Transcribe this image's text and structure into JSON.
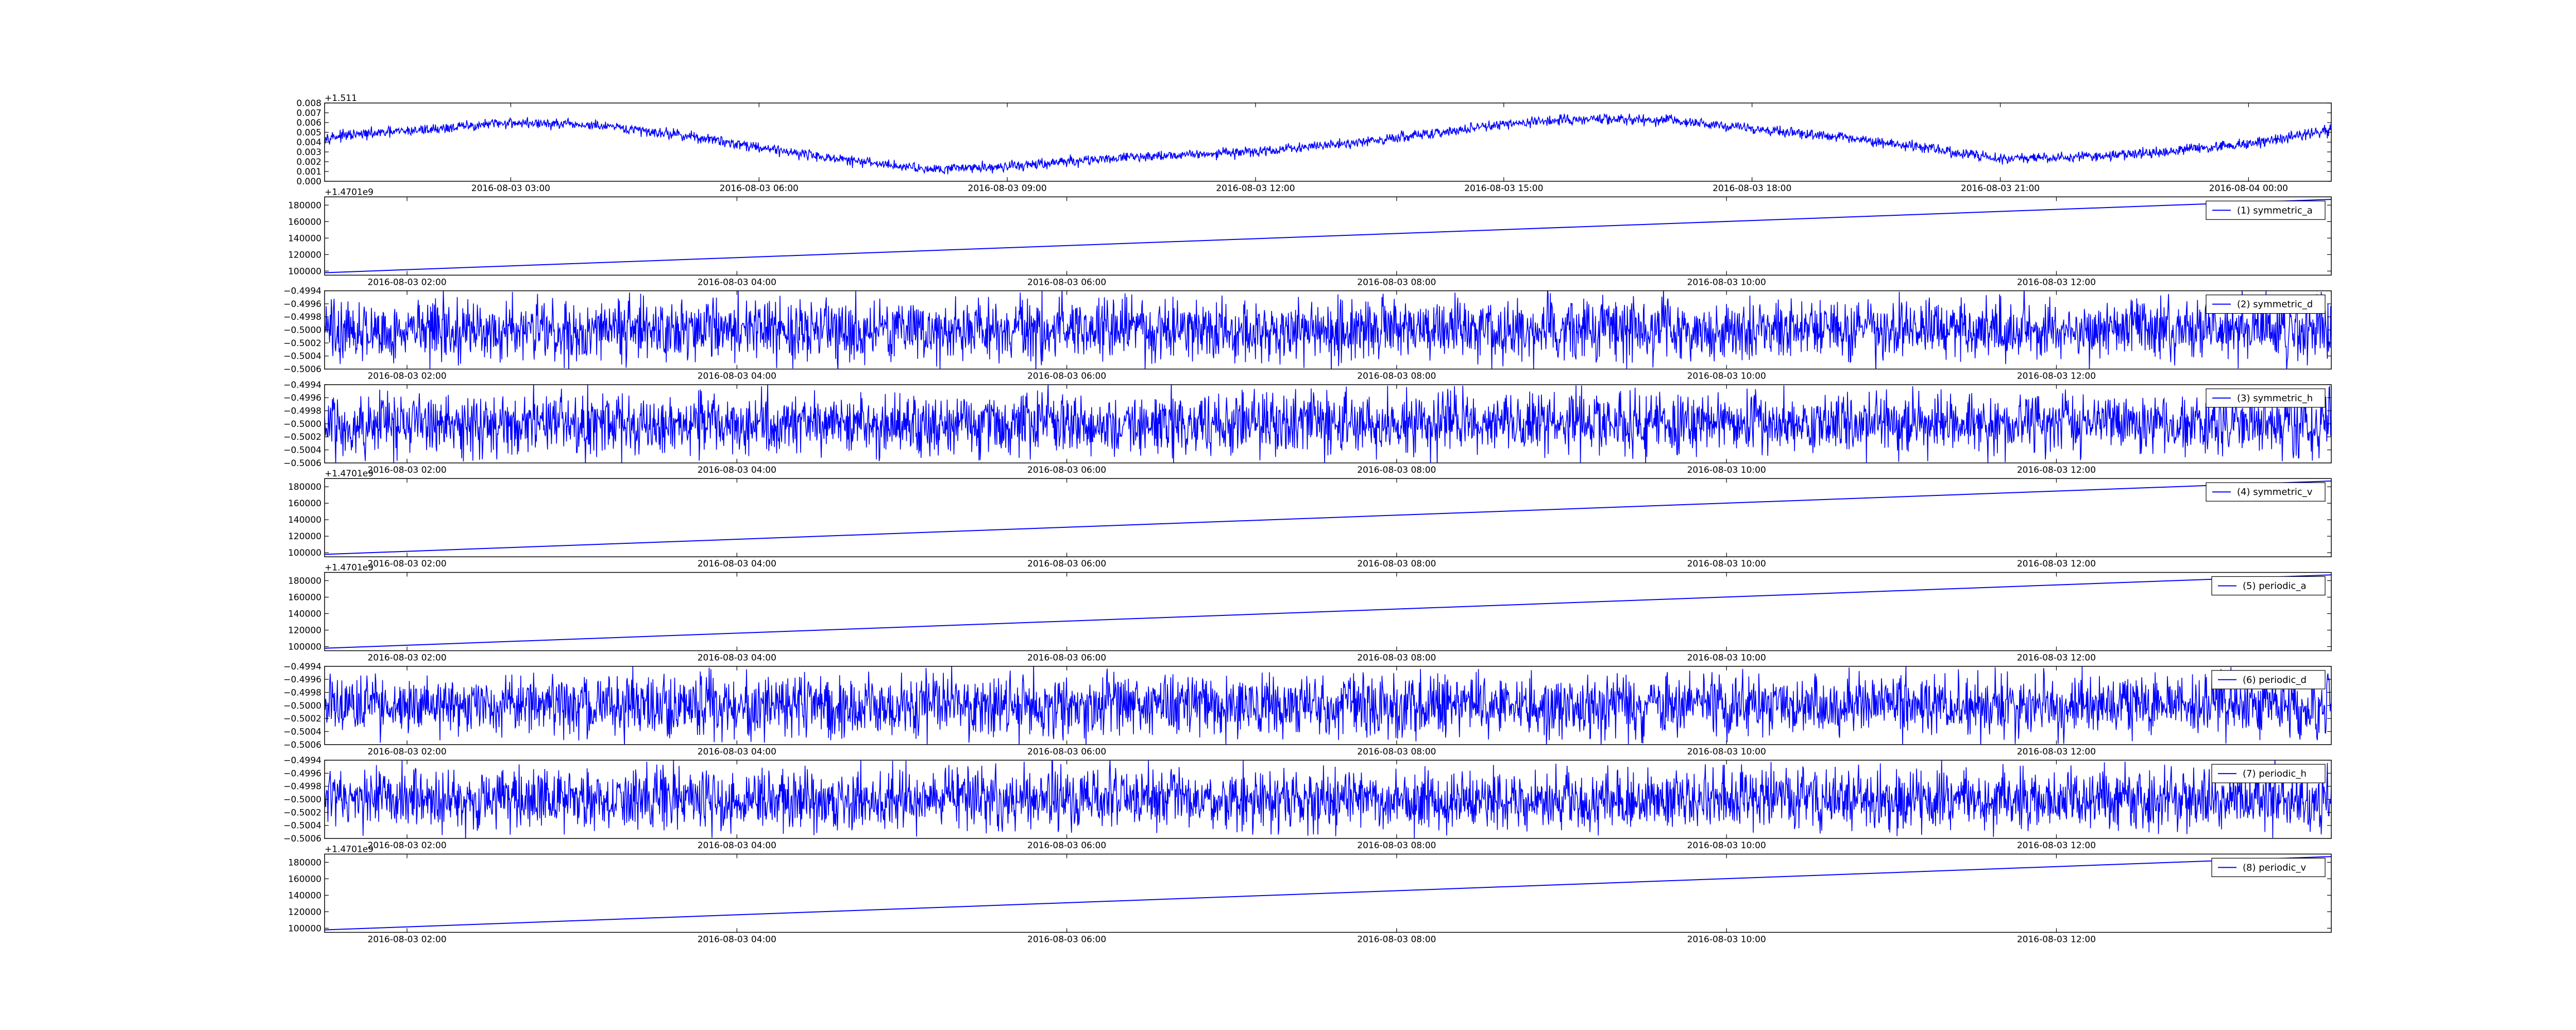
{
  "colors": {
    "line": "#0000ff",
    "axes": "#000000",
    "background": "#ffffff"
  },
  "chart_data": [
    {
      "type": "line",
      "offset_label": "+1.511",
      "yticks": [
        "0.000",
        "0.001",
        "0.002",
        "0.003",
        "0.004",
        "0.005",
        "0.006",
        "0.007",
        "0.008"
      ],
      "ylim": [
        0.0,
        0.008
      ],
      "xticks": [
        "2016-08-03 03:00",
        "2016-08-03 06:00",
        "2016-08-03 09:00",
        "2016-08-03 12:00",
        "2016-08-03 15:00",
        "2016-08-03 18:00",
        "2016-08-03 21:00",
        "2016-08-04 00:00"
      ],
      "xlim": [
        "2016-08-03 00:45",
        "2016-08-04 01:00"
      ],
      "x": [
        "2016-08-03 00:45",
        "2016-08-03 02:00",
        "2016-08-03 03:00",
        "2016-08-03 04:00",
        "2016-08-03 05:00",
        "2016-08-03 06:00",
        "2016-08-03 07:00",
        "2016-08-03 08:00",
        "2016-08-03 09:00",
        "2016-08-03 10:00",
        "2016-08-03 11:00",
        "2016-08-03 12:00",
        "2016-08-03 13:00",
        "2016-08-03 14:00",
        "2016-08-03 15:00",
        "2016-08-03 16:00",
        "2016-08-03 17:00",
        "2016-08-03 18:00",
        "2016-08-03 19:00",
        "2016-08-03 20:00",
        "2016-08-03 21:00",
        "2016-08-03 22:00",
        "2016-08-03 23:00",
        "2016-08-04 00:00",
        "2016-08-04 01:00"
      ],
      "series": [
        {
          "values": [
            0.0045,
            0.0053,
            0.006,
            0.0057,
            0.0048,
            0.0035,
            0.0022,
            0.0013,
            0.0015,
            0.0022,
            0.0027,
            0.003,
            0.0038,
            0.0047,
            0.0058,
            0.0064,
            0.0062,
            0.0054,
            0.0046,
            0.0035,
            0.0023,
            0.0025,
            0.003,
            0.0038,
            0.0052
          ],
          "noise": 0.0004
        }
      ]
    },
    {
      "type": "line",
      "offset_label": "+1.4701e9",
      "yticks": [
        "100000",
        "120000",
        "140000",
        "160000",
        "180000"
      ],
      "ylim": [
        95000,
        190000
      ],
      "xticks": [
        "2016-08-03 02:00",
        "2016-08-03 04:00",
        "2016-08-03 06:00",
        "2016-08-03 08:00",
        "2016-08-03 10:00",
        "2016-08-03 12:00"
      ],
      "xlim": [
        "2016-08-03 01:30",
        "2016-08-03 13:40"
      ],
      "x": [
        "2016-08-03 01:30",
        "2016-08-03 13:40"
      ],
      "series": [
        {
          "name": "(1) symmetric_a",
          "values": [
            98000,
            187000
          ]
        }
      ],
      "legend_position": "top-right"
    },
    {
      "type": "line",
      "yticks": [
        "−0.5006",
        "−0.5004",
        "−0.5002",
        "−0.5000",
        "−0.4998",
        "−0.4996",
        "−0.4994"
      ],
      "ylim": [
        -0.5006,
        -0.4994
      ],
      "xticks": [
        "2016-08-03 02:00",
        "2016-08-03 04:00",
        "2016-08-03 06:00",
        "2016-08-03 08:00",
        "2016-08-03 10:00",
        "2016-08-03 12:00"
      ],
      "xlim": [
        "2016-08-03 01:30",
        "2016-08-03 13:40"
      ],
      "x": [
        "2016-08-03 01:30",
        "2016-08-03 13:40"
      ],
      "series": [
        {
          "name": "(2) symmetric_d",
          "values": [
            -0.5,
            -0.5
          ],
          "noise": 0.00035
        }
      ],
      "legend_position": "top-right"
    },
    {
      "type": "line",
      "yticks": [
        "−0.5006",
        "−0.5004",
        "−0.5002",
        "−0.5000",
        "−0.4998",
        "−0.4996",
        "−0.4994"
      ],
      "ylim": [
        -0.5006,
        -0.4994
      ],
      "xticks": [
        "2016-08-03 02:00",
        "2016-08-03 04:00",
        "2016-08-03 06:00",
        "2016-08-03 08:00",
        "2016-08-03 10:00",
        "2016-08-03 12:00"
      ],
      "xlim": [
        "2016-08-03 01:30",
        "2016-08-03 13:40"
      ],
      "x": [
        "2016-08-03 01:30",
        "2016-08-03 13:40"
      ],
      "series": [
        {
          "name": "(3) symmetric_h",
          "values": [
            -0.5,
            -0.5
          ],
          "noise": 0.00035
        }
      ],
      "legend_position": "top-right"
    },
    {
      "type": "line",
      "offset_label": "+1.4701e9",
      "yticks": [
        "100000",
        "120000",
        "140000",
        "160000",
        "180000"
      ],
      "ylim": [
        95000,
        190000
      ],
      "xticks": [
        "2016-08-03 02:00",
        "2016-08-03 04:00",
        "2016-08-03 06:00",
        "2016-08-03 08:00",
        "2016-08-03 10:00",
        "2016-08-03 12:00"
      ],
      "xlim": [
        "2016-08-03 01:30",
        "2016-08-03 13:40"
      ],
      "x": [
        "2016-08-03 01:30",
        "2016-08-03 13:40"
      ],
      "series": [
        {
          "name": "(4) symmetric_v",
          "values": [
            98000,
            187000
          ]
        }
      ],
      "legend_position": "top-right"
    },
    {
      "type": "line",
      "offset_label": "+1.4701e9",
      "yticks": [
        "100000",
        "120000",
        "140000",
        "160000",
        "180000"
      ],
      "ylim": [
        95000,
        190000
      ],
      "xticks": [
        "2016-08-03 02:00",
        "2016-08-03 04:00",
        "2016-08-03 06:00",
        "2016-08-03 08:00",
        "2016-08-03 10:00",
        "2016-08-03 12:00"
      ],
      "xlim": [
        "2016-08-03 01:30",
        "2016-08-03 13:40"
      ],
      "x": [
        "2016-08-03 01:30",
        "2016-08-03 13:40"
      ],
      "series": [
        {
          "name": "(5) periodic_a",
          "values": [
            98000,
            187000
          ]
        }
      ],
      "legend_position": "top-right"
    },
    {
      "type": "line",
      "yticks": [
        "−0.5006",
        "−0.5004",
        "−0.5002",
        "−0.5000",
        "−0.4998",
        "−0.4996",
        "−0.4994"
      ],
      "ylim": [
        -0.5006,
        -0.4994
      ],
      "xticks": [
        "2016-08-03 02:00",
        "2016-08-03 04:00",
        "2016-08-03 06:00",
        "2016-08-03 08:00",
        "2016-08-03 10:00",
        "2016-08-03 12:00"
      ],
      "xlim": [
        "2016-08-03 01:30",
        "2016-08-03 13:40"
      ],
      "x": [
        "2016-08-03 01:30",
        "2016-08-03 13:40"
      ],
      "series": [
        {
          "name": "(6) periodic_d",
          "values": [
            -0.5,
            -0.5
          ],
          "noise": 0.00035
        }
      ],
      "legend_position": "top-right"
    },
    {
      "type": "line",
      "yticks": [
        "−0.5006",
        "−0.5004",
        "−0.5002",
        "−0.5000",
        "−0.4998",
        "−0.4996",
        "−0.4994"
      ],
      "ylim": [
        -0.5006,
        -0.4994
      ],
      "xticks": [
        "2016-08-03 02:00",
        "2016-08-03 04:00",
        "2016-08-03 06:00",
        "2016-08-03 08:00",
        "2016-08-03 10:00",
        "2016-08-03 12:00"
      ],
      "xlim": [
        "2016-08-03 01:30",
        "2016-08-03 13:40"
      ],
      "x": [
        "2016-08-03 01:30",
        "2016-08-03 13:40"
      ],
      "series": [
        {
          "name": "(7) periodic_h",
          "values": [
            -0.5,
            -0.5
          ],
          "noise": 0.00035
        }
      ],
      "legend_position": "top-right"
    },
    {
      "type": "line",
      "offset_label": "+1.4701e9",
      "yticks": [
        "100000",
        "120000",
        "140000",
        "160000",
        "180000"
      ],
      "ylim": [
        95000,
        190000
      ],
      "xticks": [
        "2016-08-03 02:00",
        "2016-08-03 04:00",
        "2016-08-03 06:00",
        "2016-08-03 08:00",
        "2016-08-03 10:00",
        "2016-08-03 12:00"
      ],
      "xlim": [
        "2016-08-03 01:30",
        "2016-08-03 13:40"
      ],
      "x": [
        "2016-08-03 01:30",
        "2016-08-03 13:40"
      ],
      "series": [
        {
          "name": "(8) periodic_v",
          "values": [
            98000,
            187000
          ]
        }
      ],
      "legend_position": "top-right"
    }
  ]
}
